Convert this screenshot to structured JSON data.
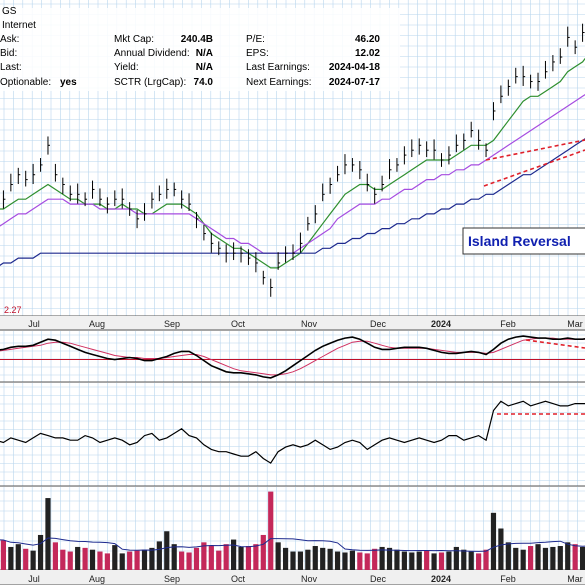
{
  "header": {
    "ticker_fragment": "GS",
    "industry": "Internet"
  },
  "info": {
    "col1": [
      {
        "label": "Ask:",
        "value": ""
      },
      {
        "label": "Bid:",
        "value": ""
      },
      {
        "label": "Last:",
        "value": ""
      },
      {
        "label": "Optionable:",
        "value": "yes"
      }
    ],
    "col2": [
      {
        "label": "Mkt Cap:",
        "value": "240.4B"
      },
      {
        "label": "Annual Dividend:",
        "value": "N/A"
      },
      {
        "label": "Yield:",
        "value": "N/A"
      },
      {
        "label": "SCTR (LrgCap):",
        "value": "74.0"
      }
    ],
    "col3": [
      {
        "label": "P/E:",
        "value": "46.20"
      },
      {
        "label": "EPS:",
        "value": "12.02"
      },
      {
        "label": "Last Earnings:",
        "value": "2024-04-18"
      },
      {
        "label": "Next Earnings:",
        "value": "2024-07-17"
      }
    ]
  },
  "annotation": "Island Reversal",
  "indicator_label": "2.27",
  "colors": {
    "background": "#f4f4f4",
    "grid": "#b8d6ee",
    "price_bars": "#000000",
    "ma_green": "#2f8f2f",
    "ma_purple": "#a64ce0",
    "ma_navy": "#1e2a8e",
    "trend_red": "#e0202a",
    "annotation": "#1020b0",
    "volume_up": "#222222",
    "volume_down": "#c4285a",
    "signal_line": "#d03060"
  },
  "chart_data": {
    "type": "line",
    "months": [
      "Jul",
      "Aug",
      "Sep",
      "Oct",
      "Nov",
      "Dec",
      "2024",
      "Feb",
      "Mar"
    ],
    "series": [
      {
        "values": [
          108,
          107,
          110,
          112,
          111,
          112,
          114,
          118,
          112,
          110,
          108,
          108,
          107,
          109,
          107,
          106,
          107,
          107,
          105,
          103,
          104,
          107,
          108,
          109,
          109,
          107,
          106,
          103,
          100,
          98,
          97,
          96,
          96,
          96,
          95,
          94,
          91,
          89,
          94,
          96,
          96,
          98,
          102,
          104,
          108,
          110,
          112,
          114,
          114,
          113,
          110,
          108,
          110,
          113,
          114,
          116,
          117,
          118,
          117,
          117,
          115,
          116,
          118,
          119,
          121,
          119,
          117,
          125,
          128,
          130,
          132,
          132,
          131,
          131,
          133,
          135,
          136,
          140,
          138,
          141,
          143
        ]
      },
      {
        "values": [
          105,
          105,
          106,
          107,
          107,
          108,
          109,
          110,
          109,
          108,
          107,
          107,
          106,
          106,
          106,
          105,
          105,
          106,
          105,
          105,
          104,
          104,
          105,
          106,
          106,
          106,
          105,
          104,
          102,
          100,
          99,
          98,
          97,
          97,
          96,
          95,
          94,
          93,
          93,
          94,
          95,
          96,
          98,
          100,
          102,
          104,
          106,
          108,
          109,
          110,
          110,
          109,
          109,
          110,
          111,
          112,
          113,
          114,
          115,
          115,
          115,
          115,
          116,
          117,
          118,
          118,
          118,
          119,
          121,
          123,
          125,
          127,
          128,
          128,
          129,
          130,
          131,
          133,
          134,
          135,
          137
        ]
      },
      {
        "values": [
          101,
          102,
          103,
          104,
          104,
          105,
          106,
          107,
          107,
          107,
          106,
          106,
          106,
          106,
          105,
          105,
          105,
          105,
          105,
          104,
          104,
          104,
          104,
          104,
          104,
          104,
          104,
          103,
          102,
          101,
          100,
          99,
          99,
          98,
          98,
          97,
          96,
          96,
          96,
          96,
          96,
          97,
          98,
          99,
          100,
          101,
          103,
          104,
          105,
          106,
          106,
          106,
          107,
          107,
          108,
          109,
          109,
          110,
          111,
          111,
          112,
          112,
          113,
          113,
          114,
          114,
          115,
          116,
          117,
          118,
          119,
          120,
          121,
          122,
          123,
          124,
          125,
          126,
          127,
          128,
          129
        ]
      },
      {
        "values": [
          93,
          94,
          94,
          95,
          95,
          95,
          96,
          96,
          96,
          96,
          96,
          96,
          96,
          96,
          96,
          96,
          96,
          96,
          96,
          96,
          96,
          96,
          96,
          96,
          96,
          96,
          96,
          96,
          96,
          96,
          96,
          96,
          96,
          96,
          96,
          96,
          96,
          96,
          96,
          96,
          96,
          96,
          96,
          96,
          97,
          97,
          98,
          98,
          99,
          99,
          100,
          100,
          101,
          101,
          102,
          102,
          103,
          103,
          104,
          104,
          105,
          105,
          106,
          106,
          107,
          107,
          108,
          108,
          109,
          110,
          111,
          112,
          112,
          113,
          114,
          115,
          116,
          117,
          118,
          119,
          120
        ]
      }
    ],
    "indicator1": [
      0.9,
      1.0,
      1.2,
      1.3,
      1.3,
      1.4,
      1.7,
      2.0,
      1.9,
      1.6,
      1.3,
      1.0,
      0.7,
      0.5,
      0.3,
      0.1,
      0.0,
      0.1,
      0.2,
      0.1,
      -0.1,
      -0.1,
      0.1,
      0.3,
      0.6,
      0.8,
      0.8,
      0.4,
      -0.1,
      -0.6,
      -0.9,
      -1.2,
      -1.3,
      -1.3,
      -1.4,
      -1.5,
      -1.7,
      -1.8,
      -1.5,
      -1.1,
      -0.6,
      -0.1,
      0.4,
      0.9,
      1.3,
      1.6,
      1.9,
      2.1,
      2.2,
      2.0,
      1.6,
      1.2,
      1.0,
      1.0,
      1.1,
      1.2,
      1.2,
      1.2,
      1.1,
      0.9,
      0.7,
      0.6,
      0.6,
      0.7,
      0.8,
      0.7,
      0.5,
      1.0,
      1.6,
      2.0,
      2.2,
      2.3,
      2.2,
      2.1,
      2.1,
      2.0,
      2.0,
      2.1,
      2.0,
      2.0,
      2.1
    ],
    "indicator1_signal": [
      0.8,
      0.9,
      1.0,
      1.1,
      1.2,
      1.3,
      1.4,
      1.6,
      1.7,
      1.7,
      1.6,
      1.4,
      1.2,
      1.0,
      0.8,
      0.6,
      0.4,
      0.3,
      0.2,
      0.2,
      0.1,
      0.1,
      0.1,
      0.2,
      0.3,
      0.4,
      0.5,
      0.5,
      0.3,
      0.0,
      -0.3,
      -0.6,
      -0.9,
      -1.1,
      -1.2,
      -1.3,
      -1.4,
      -1.5,
      -1.5,
      -1.4,
      -1.2,
      -0.9,
      -0.5,
      -0.1,
      0.3,
      0.7,
      1.1,
      1.4,
      1.7,
      1.8,
      1.8,
      1.6,
      1.4,
      1.2,
      1.1,
      1.1,
      1.1,
      1.1,
      1.1,
      1.0,
      0.9,
      0.8,
      0.7,
      0.7,
      0.7,
      0.7,
      0.6,
      0.7,
      1.0,
      1.3,
      1.6,
      1.9,
      2.0,
      2.1,
      2.1,
      2.1,
      2.0,
      2.0,
      2.0,
      2.0,
      2.0
    ],
    "indicator2": [
      55,
      54,
      56,
      55,
      54,
      56,
      58,
      57,
      56,
      56,
      55,
      55,
      57,
      56,
      54,
      55,
      56,
      55,
      53,
      54,
      57,
      58,
      55,
      56,
      58,
      60,
      57,
      56,
      53,
      51,
      50,
      50,
      49,
      48,
      48,
      50,
      47,
      45,
      50,
      52,
      53,
      52,
      53,
      55,
      53,
      51,
      52,
      54,
      55,
      54,
      51,
      53,
      55,
      56,
      55,
      54,
      55,
      56,
      55,
      54,
      55,
      57,
      57,
      55,
      56,
      57,
      55,
      68,
      72,
      70,
      71,
      72,
      70,
      71,
      72,
      71,
      70,
      70,
      71,
      71,
      71
    ],
    "volume": [
      33,
      32,
      25,
      28,
      23,
      21,
      38,
      78,
      30,
      22,
      20,
      25,
      24,
      22,
      20,
      18,
      27,
      18,
      20,
      21,
      22,
      24,
      31,
      42,
      28,
      20,
      19,
      24,
      30,
      26,
      21,
      28,
      33,
      25,
      26,
      28,
      38,
      85,
      30,
      24,
      20,
      20,
      22,
      26,
      24,
      23,
      20,
      19,
      21,
      19,
      18,
      23,
      25,
      24,
      22,
      20,
      19,
      20,
      21,
      18,
      19,
      20,
      25,
      22,
      20,
      18,
      22,
      62,
      45,
      30,
      24,
      22,
      26,
      28,
      24,
      25,
      26,
      30,
      28,
      25,
      27
    ],
    "ylim_price": [
      84,
      146
    ],
    "ylim_indicator1": [
      -2.2,
      2.8
    ],
    "ylim_indicator2": [
      35,
      80
    ],
    "ylim_volume": [
      0,
      90
    ]
  }
}
